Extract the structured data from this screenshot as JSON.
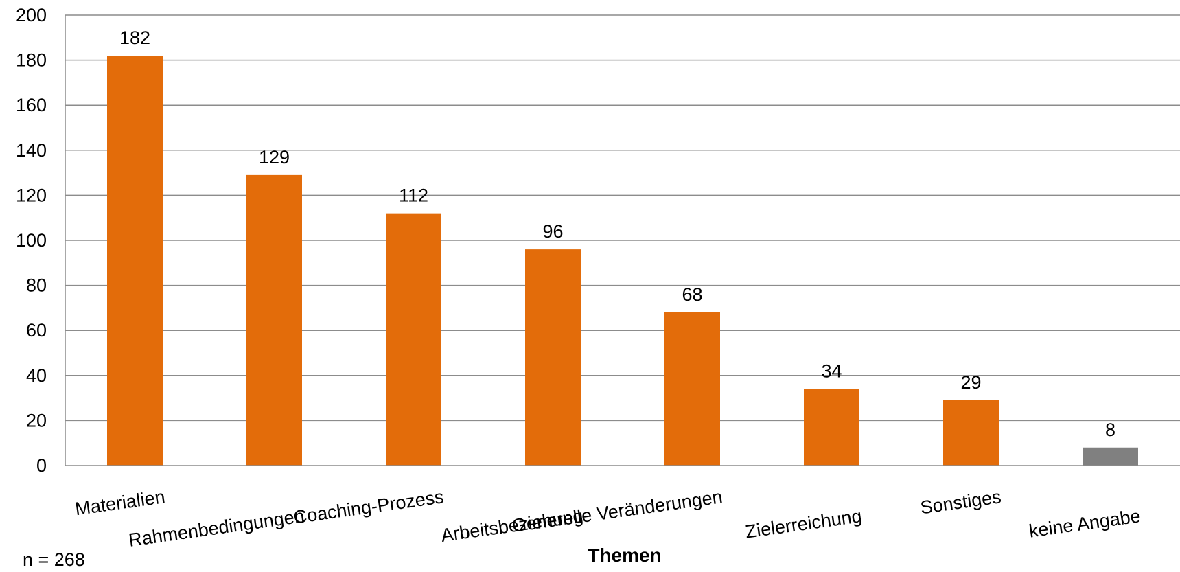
{
  "chart_data": {
    "type": "bar",
    "categories": [
      "Materialien",
      "Rahmenbedingungen",
      "Coaching-Prozess",
      "Arbeitsbeziehung",
      "Generelle Veränderungen",
      "Zielerreichung",
      "Sonstiges",
      "keine Angabe"
    ],
    "values": [
      182,
      129,
      112,
      96,
      68,
      34,
      29,
      8
    ],
    "bar_colors": [
      "#E36C0A",
      "#E36C0A",
      "#E36C0A",
      "#E36C0A",
      "#E36C0A",
      "#E36C0A",
      "#E36C0A",
      "#808080"
    ],
    "title": "",
    "xlabel": "Themen",
    "ylabel": "",
    "ylim": [
      0,
      200
    ],
    "yticks": [
      0,
      20,
      40,
      60,
      80,
      100,
      120,
      140,
      160,
      180,
      200
    ],
    "grid": true,
    "legend": "none",
    "data_labels": true,
    "category_label_rotation_deg": -8
  },
  "note": "n = 268",
  "colors": {
    "bar": "#E36C0A",
    "bar_no_answer": "#808080",
    "grid": "#8C8C8C",
    "axis": "#8C8C8C"
  }
}
